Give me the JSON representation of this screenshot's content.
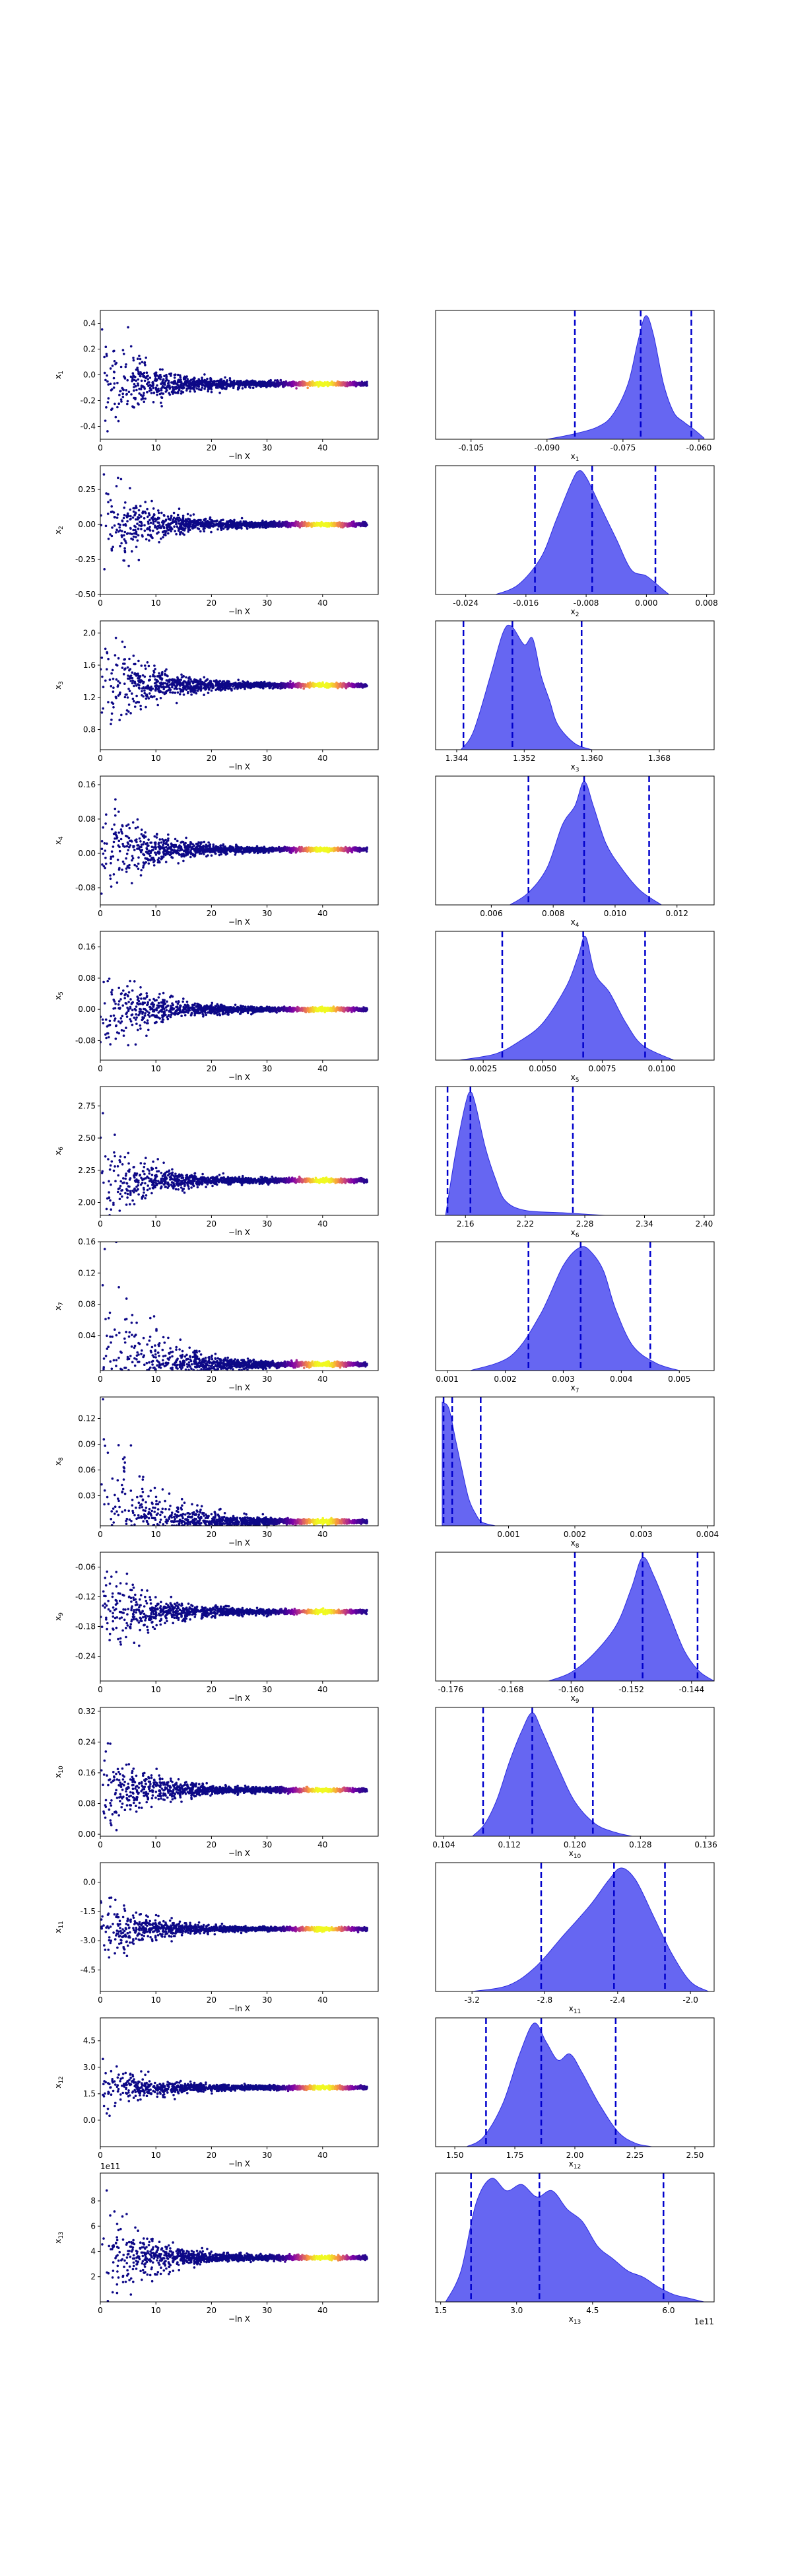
{
  "figure": {
    "colors": {
      "kde_fill": "#4b4bf0",
      "kde_edge": "#2a2ae0",
      "quantile_line": "#0000cc",
      "scatter_low": "#0d0887",
      "scatter_mid": "#cc4778",
      "scatter_high": "#f0f921"
    }
  },
  "chart_data": [
    {
      "type": "scatter",
      "param": "x1",
      "ylabel_main": "x",
      "ylabel_sub": "1",
      "xlabel": "−ln X",
      "xlim": [
        0,
        50
      ],
      "ylim": [
        -0.5,
        0.5
      ],
      "xticks": [
        "0",
        "10",
        "20",
        "30",
        "40"
      ],
      "yticks": [
        "-0.4",
        "-0.2",
        "0.0",
        "0.2",
        "0.4"
      ],
      "points_summary": {
        "converged_value": -0.07,
        "initial_spread": 0.45,
        "n_points": 1500
      }
    },
    {
      "type": "area",
      "param": "x1",
      "xlabel_main": "x",
      "xlabel_sub": "1",
      "xlim": [
        -0.112,
        -0.057
      ],
      "xticks": [
        "-0.105",
        "-0.090",
        "-0.075",
        "-0.060"
      ],
      "quantiles": [
        -0.0845,
        -0.0715,
        -0.0615
      ],
      "density": {
        "x": [
          -0.09,
          -0.085,
          -0.08,
          -0.077,
          -0.074,
          -0.072,
          -0.0705,
          -0.069,
          -0.067,
          -0.065,
          -0.063,
          -0.061,
          -0.059
        ],
        "y": [
          0,
          0.04,
          0.1,
          0.2,
          0.45,
          0.8,
          1.0,
          0.85,
          0.45,
          0.22,
          0.14,
          0.08,
          0.01
        ]
      }
    },
    {
      "type": "scatter",
      "param": "x2",
      "ylabel_main": "x",
      "ylabel_sub": "2",
      "xlabel": "−ln X",
      "xlim": [
        0,
        50
      ],
      "ylim": [
        -0.5,
        0.42
      ],
      "xticks": [
        "0",
        "10",
        "20",
        "30",
        "40"
      ],
      "yticks": [
        "-0.50",
        "-0.25",
        "0.00",
        "0.25"
      ],
      "points_summary": {
        "converged_value": 0.0,
        "initial_spread": 0.4,
        "n_points": 1500
      }
    },
    {
      "type": "area",
      "param": "x2",
      "xlabel_main": "x",
      "xlabel_sub": "2",
      "xlim": [
        -0.028,
        0.009
      ],
      "xticks": [
        "-0.024",
        "-0.016",
        "-0.008",
        "0.000",
        "0.008"
      ],
      "quantiles": [
        -0.0148,
        -0.0072,
        0.0012
      ],
      "density": {
        "x": [
          -0.02,
          -0.017,
          -0.014,
          -0.012,
          -0.01,
          -0.009,
          -0.008,
          -0.006,
          -0.004,
          -0.002,
          0.0,
          0.002,
          0.003
        ],
        "y": [
          0,
          0.08,
          0.3,
          0.6,
          0.9,
          1.0,
          0.95,
          0.7,
          0.45,
          0.2,
          0.15,
          0.05,
          0
        ]
      }
    },
    {
      "type": "scatter",
      "param": "x3",
      "ylabel_main": "x",
      "ylabel_sub": "3",
      "xlabel": "−ln X",
      "xlim": [
        0,
        50
      ],
      "ylim": [
        0.55,
        2.15
      ],
      "xticks": [
        "0",
        "10",
        "20",
        "30",
        "40"
      ],
      "yticks": [
        "0.8",
        "1.2",
        "1.6",
        "2.0"
      ],
      "points_summary": {
        "converged_value": 1.35,
        "initial_spread": 0.7,
        "n_points": 1500
      }
    },
    {
      "type": "area",
      "param": "x3",
      "xlabel_main": "x",
      "xlabel_sub": "3",
      "xlim": [
        1.3415,
        1.3745
      ],
      "xticks": [
        "1.344",
        "1.352",
        "1.360",
        "1.368"
      ],
      "quantiles": [
        1.3448,
        1.3506,
        1.3588
      ],
      "density": {
        "x": [
          1.3445,
          1.346,
          1.348,
          1.3495,
          1.3505,
          1.352,
          1.353,
          1.354,
          1.355,
          1.356,
          1.358,
          1.36
        ],
        "y": [
          0,
          0.15,
          0.6,
          0.95,
          1.0,
          0.85,
          0.9,
          0.6,
          0.4,
          0.2,
          0.05,
          0
        ]
      }
    },
    {
      "type": "scatter",
      "param": "x4",
      "ylabel_main": "x",
      "ylabel_sub": "4",
      "xlabel": "−ln X",
      "xlim": [
        0,
        50
      ],
      "ylim": [
        -0.12,
        0.18
      ],
      "xticks": [
        "0",
        "10",
        "20",
        "30",
        "40"
      ],
      "yticks": [
        "-0.08",
        "0.00",
        "0.08",
        "0.16"
      ],
      "points_summary": {
        "converged_value": 0.009,
        "initial_spread": 0.12,
        "n_points": 1500
      }
    },
    {
      "type": "area",
      "param": "x4",
      "xlabel_main": "x",
      "xlabel_sub": "4",
      "xlim": [
        0.0042,
        0.0132
      ],
      "xticks": [
        "0.006",
        "0.008",
        "0.010",
        "0.012"
      ],
      "quantiles": [
        0.0072,
        0.009,
        0.0111
      ],
      "density": {
        "x": [
          0.0066,
          0.0072,
          0.0078,
          0.0083,
          0.0087,
          0.009,
          0.0093,
          0.0097,
          0.0102,
          0.0108,
          0.0115
        ],
        "y": [
          0,
          0.1,
          0.3,
          0.65,
          0.8,
          1.0,
          0.8,
          0.5,
          0.3,
          0.12,
          0
        ]
      }
    },
    {
      "type": "scatter",
      "param": "x5",
      "ylabel_main": "x",
      "ylabel_sub": "5",
      "xlabel": "−ln X",
      "xlim": [
        0,
        50
      ],
      "ylim": [
        -0.13,
        0.2
      ],
      "xticks": [
        "0",
        "10",
        "20",
        "30",
        "40"
      ],
      "yticks": [
        "-0.08",
        "0.00",
        "0.08",
        "0.16"
      ],
      "points_summary": {
        "converged_value": 0.0,
        "initial_spread": 0.12,
        "n_points": 1500
      }
    },
    {
      "type": "area",
      "param": "x5",
      "xlabel_main": "x",
      "xlabel_sub": "5",
      "xlim": [
        0.0005,
        0.0122
      ],
      "xticks": [
        "0.0025",
        "0.0050",
        "0.0075",
        "0.0100"
      ],
      "quantiles": [
        0.0033,
        0.0067,
        0.0093
      ],
      "density": {
        "x": [
          0.0015,
          0.003,
          0.004,
          0.005,
          0.006,
          0.0065,
          0.0068,
          0.0072,
          0.0078,
          0.0085,
          0.0092,
          0.0105
        ],
        "y": [
          0,
          0.05,
          0.15,
          0.3,
          0.6,
          0.85,
          1.0,
          0.7,
          0.55,
          0.3,
          0.12,
          0
        ]
      }
    },
    {
      "type": "scatter",
      "param": "x6",
      "ylabel_main": "x",
      "ylabel_sub": "6",
      "xlabel": "−ln X",
      "xlim": [
        0,
        50
      ],
      "ylim": [
        1.9,
        2.9
      ],
      "xticks": [
        "0",
        "10",
        "20",
        "30",
        "40"
      ],
      "yticks": [
        "2.00",
        "2.25",
        "2.50",
        "2.75"
      ],
      "points_summary": {
        "converged_value": 2.17,
        "initial_spread": 0.35,
        "n_points": 1500
      }
    },
    {
      "type": "area",
      "param": "x6",
      "xlabel_main": "x",
      "xlabel_sub": "6",
      "xlim": [
        2.13,
        2.41
      ],
      "xticks": [
        "2.16",
        "2.22",
        "2.28",
        "2.34",
        "2.40"
      ],
      "quantiles": [
        2.142,
        2.165,
        2.268
      ],
      "density": {
        "x": [
          2.14,
          2.15,
          2.16,
          2.165,
          2.17,
          2.18,
          2.19,
          2.2,
          2.22,
          2.26,
          2.3
        ],
        "y": [
          0,
          0.5,
          0.9,
          1.0,
          0.9,
          0.55,
          0.3,
          0.12,
          0.04,
          0.02,
          0
        ]
      }
    },
    {
      "type": "scatter",
      "param": "x7",
      "ylabel_main": "x",
      "ylabel_sub": "7",
      "xlabel": "−ln X",
      "xlim": [
        0,
        50
      ],
      "ylim": [
        -0.005,
        0.16
      ],
      "xticks": [
        "0",
        "10",
        "20",
        "30",
        "40"
      ],
      "yticks": [
        "0.04",
        "0.08",
        "0.12",
        "0.16"
      ],
      "points_summary": {
        "converged_value": 0.003,
        "initial_spread": 0.15,
        "n_points": 1500
      }
    },
    {
      "type": "area",
      "param": "x7",
      "xlabel_main": "x",
      "xlabel_sub": "7",
      "xlim": [
        0.0008,
        0.0056
      ],
      "xticks": [
        "0.001",
        "0.002",
        "0.003",
        "0.004",
        "0.005"
      ],
      "quantiles": [
        0.0024,
        0.0033,
        0.0045
      ],
      "density": {
        "x": [
          0.0014,
          0.0021,
          0.0026,
          0.003,
          0.0033,
          0.0035,
          0.0037,
          0.0039,
          0.0042,
          0.0046,
          0.005
        ],
        "y": [
          0,
          0.12,
          0.45,
          0.85,
          1.0,
          0.95,
          0.8,
          0.5,
          0.2,
          0.06,
          0
        ]
      }
    },
    {
      "type": "scatter",
      "param": "x8",
      "ylabel_main": "x",
      "ylabel_sub": "8",
      "xlabel": "−ln X",
      "xlim": [
        0,
        50
      ],
      "ylim": [
        -0.005,
        0.145
      ],
      "xticks": [
        "0",
        "10",
        "20",
        "30",
        "40"
      ],
      "yticks": [
        "0.03",
        "0.06",
        "0.09",
        "0.12"
      ],
      "points_summary": {
        "converged_value": 0.0,
        "initial_spread": 0.14,
        "n_points": 1500
      }
    },
    {
      "type": "area",
      "param": "x8",
      "xlabel_main": "x",
      "xlabel_sub": "8",
      "xlim": [
        -0.0001,
        0.0041
      ],
      "xticks": [
        "0.001",
        "0.002",
        "0.003",
        "0.004"
      ],
      "quantiles": [
        2e-05,
        0.00015,
        0.00058
      ],
      "density": {
        "x": [
          0.0,
          0.0001,
          0.0002,
          0.0003,
          0.0004,
          0.0005,
          0.0006,
          0.0008
        ],
        "y": [
          1.0,
          0.95,
          0.7,
          0.45,
          0.22,
          0.1,
          0.03,
          0
        ]
      }
    },
    {
      "type": "scatter",
      "param": "x9",
      "ylabel_main": "x",
      "ylabel_sub": "9",
      "xlabel": "−ln X",
      "xlim": [
        0,
        50
      ],
      "ylim": [
        -0.29,
        -0.03
      ],
      "xticks": [
        "0",
        "10",
        "20",
        "30",
        "40"
      ],
      "yticks": [
        "-0.24",
        "-0.18",
        "-0.12",
        "-0.06"
      ],
      "points_summary": {
        "converged_value": -0.15,
        "initial_spread": 0.1,
        "n_points": 1500
      }
    },
    {
      "type": "area",
      "param": "x9",
      "xlabel_main": "x",
      "xlabel_sub": "9",
      "xlim": [
        -0.178,
        -0.141
      ],
      "xticks": [
        "-0.176",
        "-0.168",
        "-0.160",
        "-0.152",
        "-0.144"
      ],
      "quantiles": [
        -0.1595,
        -0.1505,
        -0.1432
      ],
      "density": {
        "x": [
          -0.163,
          -0.16,
          -0.157,
          -0.154,
          -0.152,
          -0.1505,
          -0.149,
          -0.147,
          -0.145,
          -0.143,
          -0.141
        ],
        "y": [
          0,
          0.07,
          0.22,
          0.45,
          0.75,
          1.0,
          0.85,
          0.55,
          0.25,
          0.08,
          0
        ]
      }
    },
    {
      "type": "scatter",
      "param": "x10",
      "ylabel_main": "x",
      "ylabel_sub": "10",
      "xlabel": "−ln X",
      "xlim": [
        0,
        50
      ],
      "ylim": [
        -0.005,
        0.33
      ],
      "xticks": [
        "0",
        "10",
        "20",
        "30",
        "40"
      ],
      "yticks": [
        "0.00",
        "0.08",
        "0.16",
        "0.24",
        "0.32"
      ],
      "points_summary": {
        "converged_value": 0.115,
        "initial_spread": 0.12,
        "n_points": 1500
      }
    },
    {
      "type": "area",
      "param": "x10",
      "xlabel_main": "x",
      "xlabel_sub": "10",
      "xlim": [
        0.103,
        0.137
      ],
      "xticks": [
        "0.104",
        "0.112",
        "0.120",
        "0.128",
        "0.136"
      ],
      "quantiles": [
        0.1088,
        0.1148,
        0.1222
      ],
      "density": {
        "x": [
          0.1075,
          0.109,
          0.1105,
          0.112,
          0.1135,
          0.1148,
          0.116,
          0.118,
          0.12,
          0.1225,
          0.125,
          0.127
        ],
        "y": [
          0,
          0.1,
          0.3,
          0.6,
          0.85,
          1.0,
          0.85,
          0.55,
          0.28,
          0.1,
          0.03,
          0
        ]
      }
    },
    {
      "type": "scatter",
      "param": "x11",
      "ylabel_main": "x",
      "ylabel_sub": "11",
      "xlabel": "−ln X",
      "xlim": [
        0,
        50
      ],
      "ylim": [
        -5.6,
        1.0
      ],
      "xticks": [
        "0",
        "10",
        "20",
        "30",
        "40"
      ],
      "yticks": [
        "-4.5",
        "-3.0",
        "-1.5",
        "0.0"
      ],
      "points_summary": {
        "converged_value": -2.4,
        "initial_spread": 1.8,
        "n_points": 1500
      }
    },
    {
      "type": "area",
      "param": "x11",
      "xlabel_main": "x",
      "xlabel_sub": "11",
      "xlim": [
        -3.4,
        -1.87
      ],
      "xticks": [
        "-3.2",
        "-2.8",
        "-2.4",
        "-2.0"
      ],
      "quantiles": [
        -2.82,
        -2.42,
        -2.14
      ],
      "density": {
        "x": [
          -3.2,
          -3.0,
          -2.85,
          -2.7,
          -2.55,
          -2.45,
          -2.38,
          -2.3,
          -2.2,
          -2.1,
          -2.0,
          -1.9
        ],
        "y": [
          0,
          0.05,
          0.2,
          0.45,
          0.7,
          0.9,
          1.0,
          0.9,
          0.6,
          0.3,
          0.08,
          0
        ]
      }
    },
    {
      "type": "scatter",
      "param": "x12",
      "ylabel_main": "x",
      "ylabel_sub": "12",
      "xlabel": "−ln X",
      "xlim": [
        0,
        50
      ],
      "ylim": [
        -1.5,
        5.8
      ],
      "xticks": [
        "0",
        "10",
        "20",
        "30",
        "40"
      ],
      "yticks": [
        "0.0",
        "1.5",
        "3.0",
        "4.5"
      ],
      "points_summary": {
        "converged_value": 1.85,
        "initial_spread": 1.5,
        "n_points": 1500
      }
    },
    {
      "type": "area",
      "param": "x12",
      "xlabel_main": "x",
      "xlabel_sub": "12",
      "xlim": [
        1.42,
        2.58
      ],
      "xticks": [
        "1.50",
        "1.75",
        "2.00",
        "2.25",
        "2.50"
      ],
      "quantiles": [
        1.63,
        1.86,
        2.17
      ],
      "density": {
        "x": [
          1.55,
          1.62,
          1.7,
          1.77,
          1.83,
          1.88,
          1.93,
          1.98,
          2.03,
          2.1,
          2.18,
          2.25,
          2.32
        ],
        "y": [
          0,
          0.08,
          0.35,
          0.75,
          1.0,
          0.85,
          0.7,
          0.75,
          0.6,
          0.35,
          0.12,
          0.03,
          0
        ]
      }
    },
    {
      "type": "scatter",
      "param": "x13",
      "ylabel_main": "x",
      "ylabel_sub": "13",
      "xlabel": "−ln X",
      "offset_text": "1e11",
      "xlim": [
        0,
        50
      ],
      "ylim": [
        0.0,
        10.2
      ],
      "xticks": [
        "0",
        "10",
        "20",
        "30",
        "40"
      ],
      "yticks": [
        "2",
        "4",
        "6",
        "8"
      ],
      "points_summary": {
        "converged_value": 3.5,
        "initial_spread": 4.5,
        "n_points": 1500
      }
    },
    {
      "type": "area",
      "param": "x13",
      "xlabel_main": "x",
      "xlabel_sub": "13",
      "offset_text": "1e11",
      "xlim": [
        1.4,
        6.9
      ],
      "xticks": [
        "1.5",
        "3.0",
        "4.5",
        "6.0"
      ],
      "quantiles": [
        2.1,
        3.45,
        5.9
      ],
      "density": {
        "x": [
          1.6,
          1.9,
          2.2,
          2.5,
          2.8,
          3.1,
          3.4,
          3.7,
          4.0,
          4.3,
          4.6,
          4.9,
          5.2,
          5.5,
          5.8,
          6.1,
          6.4,
          6.7
        ],
        "y": [
          0,
          0.25,
          0.8,
          1.0,
          0.9,
          0.95,
          0.85,
          0.9,
          0.75,
          0.65,
          0.45,
          0.35,
          0.25,
          0.2,
          0.12,
          0.06,
          0.03,
          0
        ]
      }
    }
  ]
}
